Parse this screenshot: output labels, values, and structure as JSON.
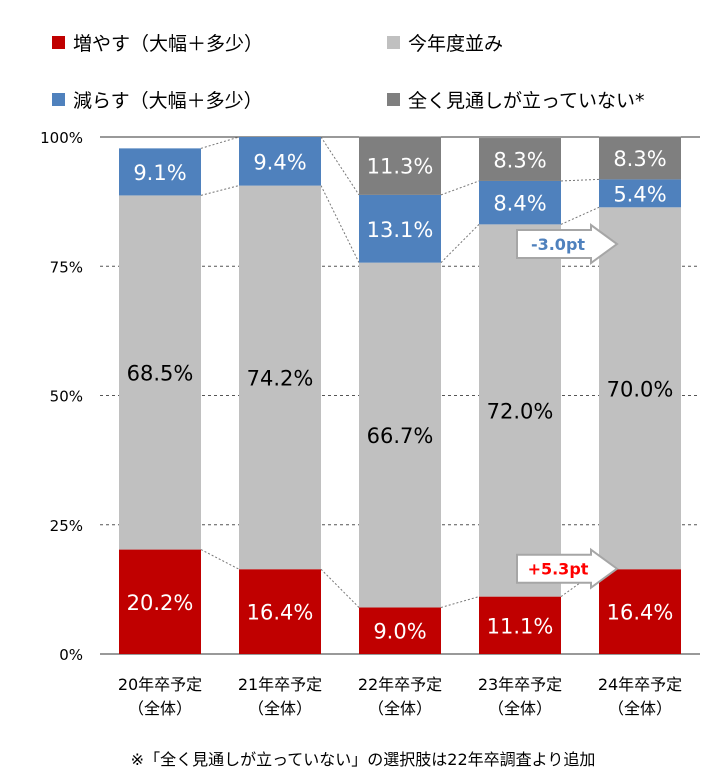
{
  "chart_data": {
    "type": "bar",
    "stacked": true,
    "categories": [
      [
        "20年卒予定",
        "（全体）"
      ],
      [
        "21年卒予定",
        "（全体）"
      ],
      [
        "22年卒予定",
        "（全体）"
      ],
      [
        "23年卒予定",
        "（全体）"
      ],
      [
        "24年卒予定",
        "（全体）"
      ]
    ],
    "series": [
      {
        "name": "増やす（大幅＋多少）",
        "color": "#c00000",
        "values": [
          20.2,
          16.4,
          9.0,
          11.1,
          16.4
        ],
        "labels": [
          "20.2%",
          "16.4%",
          "9.0%",
          "11.1%",
          "16.4%"
        ],
        "label_color": "#ffffff"
      },
      {
        "name": "今年度並み",
        "color": "#c0c0c0",
        "values": [
          68.5,
          74.2,
          66.7,
          72.0,
          70.0
        ],
        "labels": [
          "68.5%",
          "74.2%",
          "66.7%",
          "72.0%",
          "70.0%"
        ],
        "label_color": "#000000"
      },
      {
        "name": "減らす（大幅＋多少）",
        "color": "#4f81bd",
        "values": [
          9.1,
          9.4,
          13.1,
          8.4,
          5.4
        ],
        "labels": [
          "9.1%",
          "9.4%",
          "13.1%",
          "8.4%",
          "5.4%"
        ],
        "label_color": "#ffffff"
      },
      {
        "name": "全く見通しが立っていない*",
        "color": "#7f7f7f",
        "values": [
          0,
          0,
          11.3,
          8.3,
          8.3
        ],
        "labels": [
          "",
          "",
          "11.3%",
          "8.3%",
          "8.3%"
        ],
        "label_color": "#ffffff"
      }
    ],
    "yaxis": {
      "min": 0,
      "max": 100,
      "ticks": [
        0,
        25,
        50,
        75,
        100
      ],
      "tick_labels": [
        "0%",
        "25%",
        "50%",
        "75%",
        "100%"
      ]
    },
    "annotations": [
      {
        "text": "-3.0pt",
        "color": "#4f81bd"
      },
      {
        "text": "+5.3pt",
        "color": "#ff0000"
      }
    ],
    "footnote": "※「全く見通しが立っていない」の選択肢は22年卒調査より追加"
  }
}
